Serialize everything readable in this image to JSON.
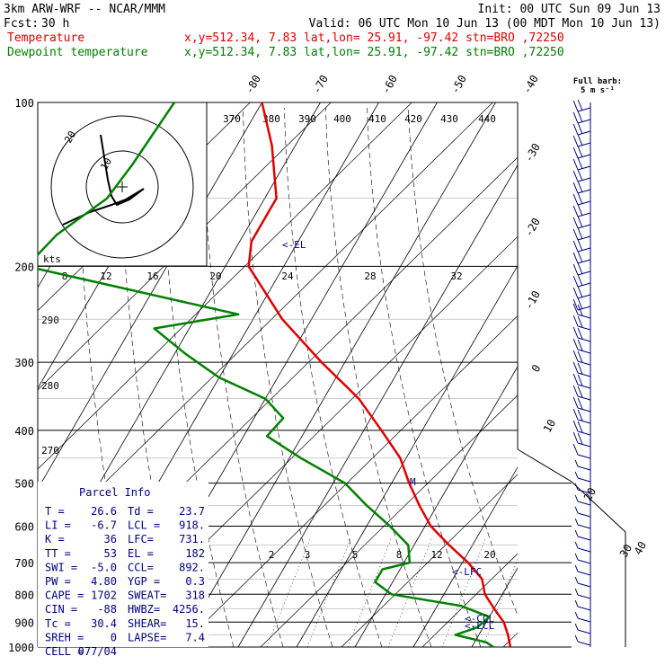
{
  "header": {
    "model": "3km ARW-WRF -- NCAR/MMM",
    "init": "Init: 00 UTC Sun 09 Jun 13",
    "fcst_label": "Fcst:",
    "fcst_value": "30 h",
    "valid": "Valid: 06 UTC Mon 10 Jun 13 (00 MDT Mon 10 Jun 13)"
  },
  "legend": [
    {
      "name": "Temperature",
      "info": "x,y=512.34,  7.83   lat,lon= 25.91, -97.42  stn=BRO ,72250",
      "color": "#e00000"
    },
    {
      "name": "Dewpoint temperature",
      "info": "x,y=512.34,  7.83   lat,lon= 25.91, -97.42  stn=BRO ,72250",
      "color": "#008000"
    }
  ],
  "wind_label": {
    "line1": "Full barb:",
    "line2": "5 m s⁻¹"
  },
  "hodograph": {
    "units": "kts",
    "ring_labels": [
      "10",
      "20"
    ]
  },
  "parcel_info": {
    "title": "Parcel Info",
    "rows": [
      [
        "T  =",
        "26.6",
        "Td =",
        "23.7"
      ],
      [
        "LI =",
        "-6.7",
        "LCL =",
        "918."
      ],
      [
        "K  =",
        "36",
        "LFC=",
        "731."
      ],
      [
        "TT =",
        "53",
        "EL =",
        "182"
      ],
      [
        "SWI =",
        "-5.0",
        "CCL=",
        "892."
      ],
      [
        "PW =",
        "4.80",
        "YGP =",
        "0.3"
      ],
      [
        "CAPE =",
        "1702",
        "SWEAT=",
        "318"
      ],
      [
        "CIN =",
        "-88",
        "HWBZ=",
        "4256."
      ],
      [
        "Tc =",
        "30.4",
        "SHEAR=",
        "15."
      ],
      [
        "SREH =",
        "0",
        "LAPSE=",
        "7.4"
      ],
      [
        "CELL =",
        "077/04",
        "",
        " "
      ]
    ]
  },
  "chart_data": {
    "type": "line",
    "title": "",
    "ylabel": "",
    "xlabel": "",
    "p_range": [
      1000,
      100
    ],
    "pressure_levels": [
      100,
      200,
      300,
      400,
      500,
      600,
      700,
      800,
      900,
      1000
    ],
    "isotherm_labels": [
      "-80",
      "-70",
      "-60",
      "-50",
      "-40",
      "-30",
      "-20",
      "-10",
      "0",
      "10",
      "20",
      "30",
      "40"
    ],
    "theta_labels": [
      "370",
      "380",
      "390",
      "400",
      "410",
      "420",
      "430",
      "440",
      "290",
      "280",
      "270"
    ],
    "mixing_ratio_labels": [
      "2",
      "3",
      "5",
      "8",
      "12",
      "20"
    ],
    "hodo_speed_labels": [
      "8",
      "12",
      "16",
      "20",
      "24",
      "28",
      "32"
    ],
    "annotations": [
      "<-EL",
      "<-LFC",
      "<-CCL",
      "<-LCL",
      "M"
    ],
    "series": [
      {
        "name": "Temperature",
        "color": "#e00000",
        "points": [
          [
            100,
            -70
          ],
          [
            120,
            -64
          ],
          [
            150,
            -58
          ],
          [
            180,
            -58
          ],
          [
            200,
            -56
          ],
          [
            250,
            -45
          ],
          [
            300,
            -34
          ],
          [
            350,
            -24
          ],
          [
            400,
            -17
          ],
          [
            450,
            -11
          ],
          [
            500,
            -7
          ],
          [
            550,
            -3
          ],
          [
            600,
            1
          ],
          [
            650,
            6
          ],
          [
            700,
            11
          ],
          [
            750,
            15
          ],
          [
            800,
            17
          ],
          [
            850,
            20
          ],
          [
            900,
            23
          ],
          [
            950,
            25
          ],
          [
            1000,
            26.6
          ]
        ]
      },
      {
        "name": "Dewpoint temperature",
        "color": "#008000",
        "points": [
          [
            100,
            -85
          ],
          [
            130,
            -86
          ],
          [
            150,
            -87
          ],
          [
            175,
            -92
          ],
          [
            200,
            -94
          ],
          [
            245,
            -53
          ],
          [
            260,
            -66
          ],
          [
            290,
            -58
          ],
          [
            320,
            -50
          ],
          [
            350,
            -40
          ],
          [
            380,
            -35
          ],
          [
            410,
            -36
          ],
          [
            450,
            -28
          ],
          [
            500,
            -18
          ],
          [
            550,
            -12
          ],
          [
            600,
            -6
          ],
          [
            650,
            -1
          ],
          [
            700,
            1
          ],
          [
            720,
            -3
          ],
          [
            760,
            -3
          ],
          [
            800,
            1
          ],
          [
            840,
            14
          ],
          [
            880,
            20
          ],
          [
            920,
            19
          ],
          [
            950,
            16
          ],
          [
            980,
            22
          ],
          [
            1000,
            23.7
          ]
        ]
      }
    ]
  }
}
